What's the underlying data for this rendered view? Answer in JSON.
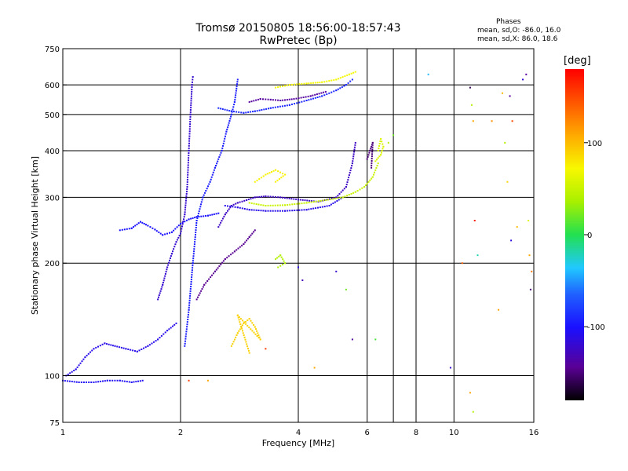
{
  "chart_data": {
    "type": "scatter",
    "title": "Tromsø 20150805 18:56:00-18:57:43",
    "subtitle": "RwPretec (Bp)",
    "stats": {
      "heading": "Phases",
      "line_o": "mean, sd,O: -86.0, 16.0",
      "line_x": "mean, sd,X: 86.0, 18.6"
    },
    "xlabel": "Frequency [MHz]",
    "ylabel": "Stationary phase Virtual Height [km]",
    "x_scale": "log",
    "y_scale": "log",
    "xlim": [
      1,
      16
    ],
    "ylim": [
      75,
      750
    ],
    "x_ticks": [
      1,
      2,
      4,
      6,
      8,
      10,
      16
    ],
    "y_ticks": [
      75,
      100,
      200,
      300,
      400,
      500,
      600,
      750
    ],
    "x_gridlines": [
      2,
      4,
      6,
      7,
      8,
      10
    ],
    "y_gridlines": [
      100,
      200,
      300,
      400,
      500,
      600
    ],
    "grid": true,
    "colorbar": {
      "label": "[deg]",
      "range": [
        -180,
        180
      ],
      "ticks": [
        100,
        0,
        -100
      ]
    },
    "traces": [
      {
        "phase": -110,
        "points": [
          [
            1.02,
            100
          ],
          [
            1.08,
            104
          ],
          [
            1.14,
            112
          ],
          [
            1.2,
            118
          ],
          [
            1.28,
            122
          ],
          [
            1.36,
            120
          ],
          [
            1.45,
            118
          ],
          [
            1.55,
            116
          ],
          [
            1.65,
            120
          ],
          [
            1.75,
            125
          ],
          [
            1.85,
            132
          ],
          [
            1.95,
            138
          ]
        ]
      },
      {
        "phase": -105,
        "points": [
          [
            1.0,
            97
          ],
          [
            1.1,
            96
          ],
          [
            1.2,
            96
          ],
          [
            1.3,
            97
          ],
          [
            1.4,
            97
          ],
          [
            1.5,
            96
          ],
          [
            1.6,
            97
          ]
        ]
      },
      {
        "phase": -100,
        "points": [
          [
            1.4,
            245
          ],
          [
            1.5,
            248
          ],
          [
            1.58,
            258
          ],
          [
            1.65,
            252
          ],
          [
            1.72,
            246
          ],
          [
            1.8,
            238
          ],
          [
            1.9,
            242
          ],
          [
            2.0,
            255
          ],
          [
            2.1,
            262
          ],
          [
            2.2,
            266
          ],
          [
            2.35,
            268
          ],
          [
            2.5,
            272
          ]
        ]
      },
      {
        "phase": -120,
        "points": [
          [
            1.75,
            160
          ],
          [
            1.8,
            175
          ],
          [
            1.85,
            195
          ],
          [
            1.9,
            212
          ],
          [
            1.95,
            228
          ],
          [
            2.0,
            240
          ],
          [
            2.05,
            270
          ],
          [
            2.08,
            320
          ],
          [
            2.1,
            400
          ],
          [
            2.12,
            500
          ],
          [
            2.14,
            600
          ],
          [
            2.15,
            630
          ]
        ]
      },
      {
        "phase": -95,
        "points": [
          [
            2.05,
            120
          ],
          [
            2.1,
            150
          ],
          [
            2.15,
            200
          ],
          [
            2.2,
            260
          ],
          [
            2.28,
            300
          ],
          [
            2.38,
            330
          ],
          [
            2.45,
            360
          ],
          [
            2.55,
            400
          ],
          [
            2.62,
            450
          ],
          [
            2.7,
            500
          ],
          [
            2.75,
            540
          ],
          [
            2.8,
            620
          ]
        ]
      },
      {
        "phase": -125,
        "points": [
          [
            2.5,
            250
          ],
          [
            2.6,
            270
          ],
          [
            2.7,
            285
          ],
          [
            2.8,
            290
          ],
          [
            2.95,
            295
          ],
          [
            3.1,
            300
          ],
          [
            3.3,
            302
          ],
          [
            3.6,
            300
          ],
          [
            4.0,
            296
          ],
          [
            4.5,
            292
          ],
          [
            5.0,
            300
          ],
          [
            5.3,
            320
          ],
          [
            5.5,
            370
          ],
          [
            5.6,
            420
          ]
        ]
      },
      {
        "phase": -110,
        "points": [
          [
            2.6,
            285
          ],
          [
            2.8,
            282
          ],
          [
            3.0,
            278
          ],
          [
            3.3,
            276
          ],
          [
            3.7,
            276
          ],
          [
            4.2,
            278
          ],
          [
            4.8,
            285
          ],
          [
            5.2,
            300
          ]
        ]
      },
      {
        "phase": 50,
        "points": [
          [
            3.0,
            290
          ],
          [
            3.3,
            285
          ],
          [
            3.7,
            286
          ],
          [
            4.2,
            290
          ],
          [
            4.7,
            295
          ],
          [
            5.2,
            300
          ],
          [
            5.6,
            310
          ],
          [
            5.9,
            320
          ],
          [
            6.2,
            340
          ],
          [
            6.4,
            370
          ]
        ]
      },
      {
        "phase": -90,
        "points": [
          [
            2.5,
            520
          ],
          [
            2.7,
            510
          ],
          [
            2.9,
            505
          ],
          [
            3.1,
            510
          ],
          [
            3.4,
            520
          ],
          [
            3.8,
            530
          ],
          [
            4.2,
            545
          ],
          [
            4.6,
            560
          ],
          [
            5.0,
            580
          ],
          [
            5.3,
            600
          ],
          [
            5.5,
            620
          ]
        ]
      },
      {
        "phase": -140,
        "points": [
          [
            3.0,
            540
          ],
          [
            3.2,
            550
          ],
          [
            3.4,
            548
          ],
          [
            3.6,
            545
          ],
          [
            3.9,
            550
          ],
          [
            4.3,
            560
          ],
          [
            4.7,
            575
          ]
        ]
      },
      {
        "phase": 70,
        "points": [
          [
            3.5,
            590
          ],
          [
            3.8,
            600
          ],
          [
            4.2,
            605
          ],
          [
            4.6,
            610
          ],
          [
            5.0,
            620
          ],
          [
            5.4,
            640
          ],
          [
            5.6,
            650
          ]
        ]
      },
      {
        "phase": -145,
        "points": [
          [
            2.2,
            160
          ],
          [
            2.3,
            175
          ],
          [
            2.45,
            190
          ],
          [
            2.6,
            205
          ],
          [
            2.75,
            215
          ],
          [
            2.9,
            225
          ],
          [
            3.0,
            235
          ],
          [
            3.1,
            245
          ]
        ]
      },
      {
        "phase": 90,
        "points": [
          [
            2.7,
            120
          ],
          [
            2.8,
            130
          ],
          [
            2.9,
            138
          ],
          [
            3.0,
            142
          ],
          [
            3.1,
            135
          ],
          [
            3.2,
            125
          ],
          [
            2.8,
            145
          ],
          [
            3.0,
            115
          ]
        ]
      },
      {
        "phase": 75,
        "points": [
          [
            3.1,
            330
          ],
          [
            3.3,
            345
          ],
          [
            3.5,
            355
          ],
          [
            3.7,
            345
          ],
          [
            3.5,
            330
          ]
        ]
      },
      {
        "phase": 40,
        "points": [
          [
            3.5,
            205
          ],
          [
            3.6,
            210
          ],
          [
            3.7,
            200
          ],
          [
            3.55,
            195
          ]
        ]
      },
      {
        "phase": 60,
        "points": [
          [
            6.3,
            375
          ],
          [
            6.5,
            390
          ],
          [
            6.6,
            410
          ],
          [
            6.5,
            430
          ],
          [
            6.4,
            400
          ]
        ]
      },
      {
        "phase": -150,
        "points": [
          [
            6.0,
            380
          ],
          [
            6.1,
            400
          ],
          [
            6.2,
            420
          ],
          [
            6.15,
            360
          ]
        ]
      }
    ],
    "scattered_points": [
      {
        "x": 2.1,
        "y": 97,
        "phase": 155
      },
      {
        "x": 2.35,
        "y": 97,
        "phase": 110
      },
      {
        "x": 3.3,
        "y": 118,
        "phase": 155
      },
      {
        "x": 4.0,
        "y": 195,
        "phase": -110
      },
      {
        "x": 4.1,
        "y": 180,
        "phase": -130
      },
      {
        "x": 5.0,
        "y": 190,
        "phase": -120
      },
      {
        "x": 4.4,
        "y": 105,
        "phase": 110
      },
      {
        "x": 5.5,
        "y": 125,
        "phase": -140
      },
      {
        "x": 5.3,
        "y": 170,
        "phase": 20
      },
      {
        "x": 6.3,
        "y": 125,
        "phase": 10
      },
      {
        "x": 6.8,
        "y": 420,
        "phase": 40
      },
      {
        "x": 7.0,
        "y": 440,
        "phase": 20
      },
      {
        "x": 8.6,
        "y": 640,
        "phase": -40
      },
      {
        "x": 9.8,
        "y": 105,
        "phase": -120
      },
      {
        "x": 10.5,
        "y": 200,
        "phase": 140
      },
      {
        "x": 11.0,
        "y": 590,
        "phase": -160
      },
      {
        "x": 11.1,
        "y": 530,
        "phase": 40
      },
      {
        "x": 11.2,
        "y": 480,
        "phase": 110
      },
      {
        "x": 11.3,
        "y": 260,
        "phase": 170
      },
      {
        "x": 11.0,
        "y": 90,
        "phase": 110
      },
      {
        "x": 11.2,
        "y": 80,
        "phase": 40
      },
      {
        "x": 11.5,
        "y": 210,
        "phase": -20
      },
      {
        "x": 12.5,
        "y": 480,
        "phase": 120
      },
      {
        "x": 13.0,
        "y": 150,
        "phase": 110
      },
      {
        "x": 13.3,
        "y": 570,
        "phase": 100
      },
      {
        "x": 13.5,
        "y": 420,
        "phase": 40
      },
      {
        "x": 13.7,
        "y": 330,
        "phase": 90
      },
      {
        "x": 13.9,
        "y": 560,
        "phase": -140
      },
      {
        "x": 14.1,
        "y": 480,
        "phase": 150
      },
      {
        "x": 14.5,
        "y": 250,
        "phase": 100
      },
      {
        "x": 15.0,
        "y": 620,
        "phase": -120
      },
      {
        "x": 15.3,
        "y": 640,
        "phase": -140
      },
      {
        "x": 15.5,
        "y": 260,
        "phase": 60
      },
      {
        "x": 15.6,
        "y": 210,
        "phase": 110
      },
      {
        "x": 15.7,
        "y": 170,
        "phase": -150
      },
      {
        "x": 15.8,
        "y": 190,
        "phase": 130
      },
      {
        "x": 14.0,
        "y": 230,
        "phase": -110
      }
    ]
  }
}
